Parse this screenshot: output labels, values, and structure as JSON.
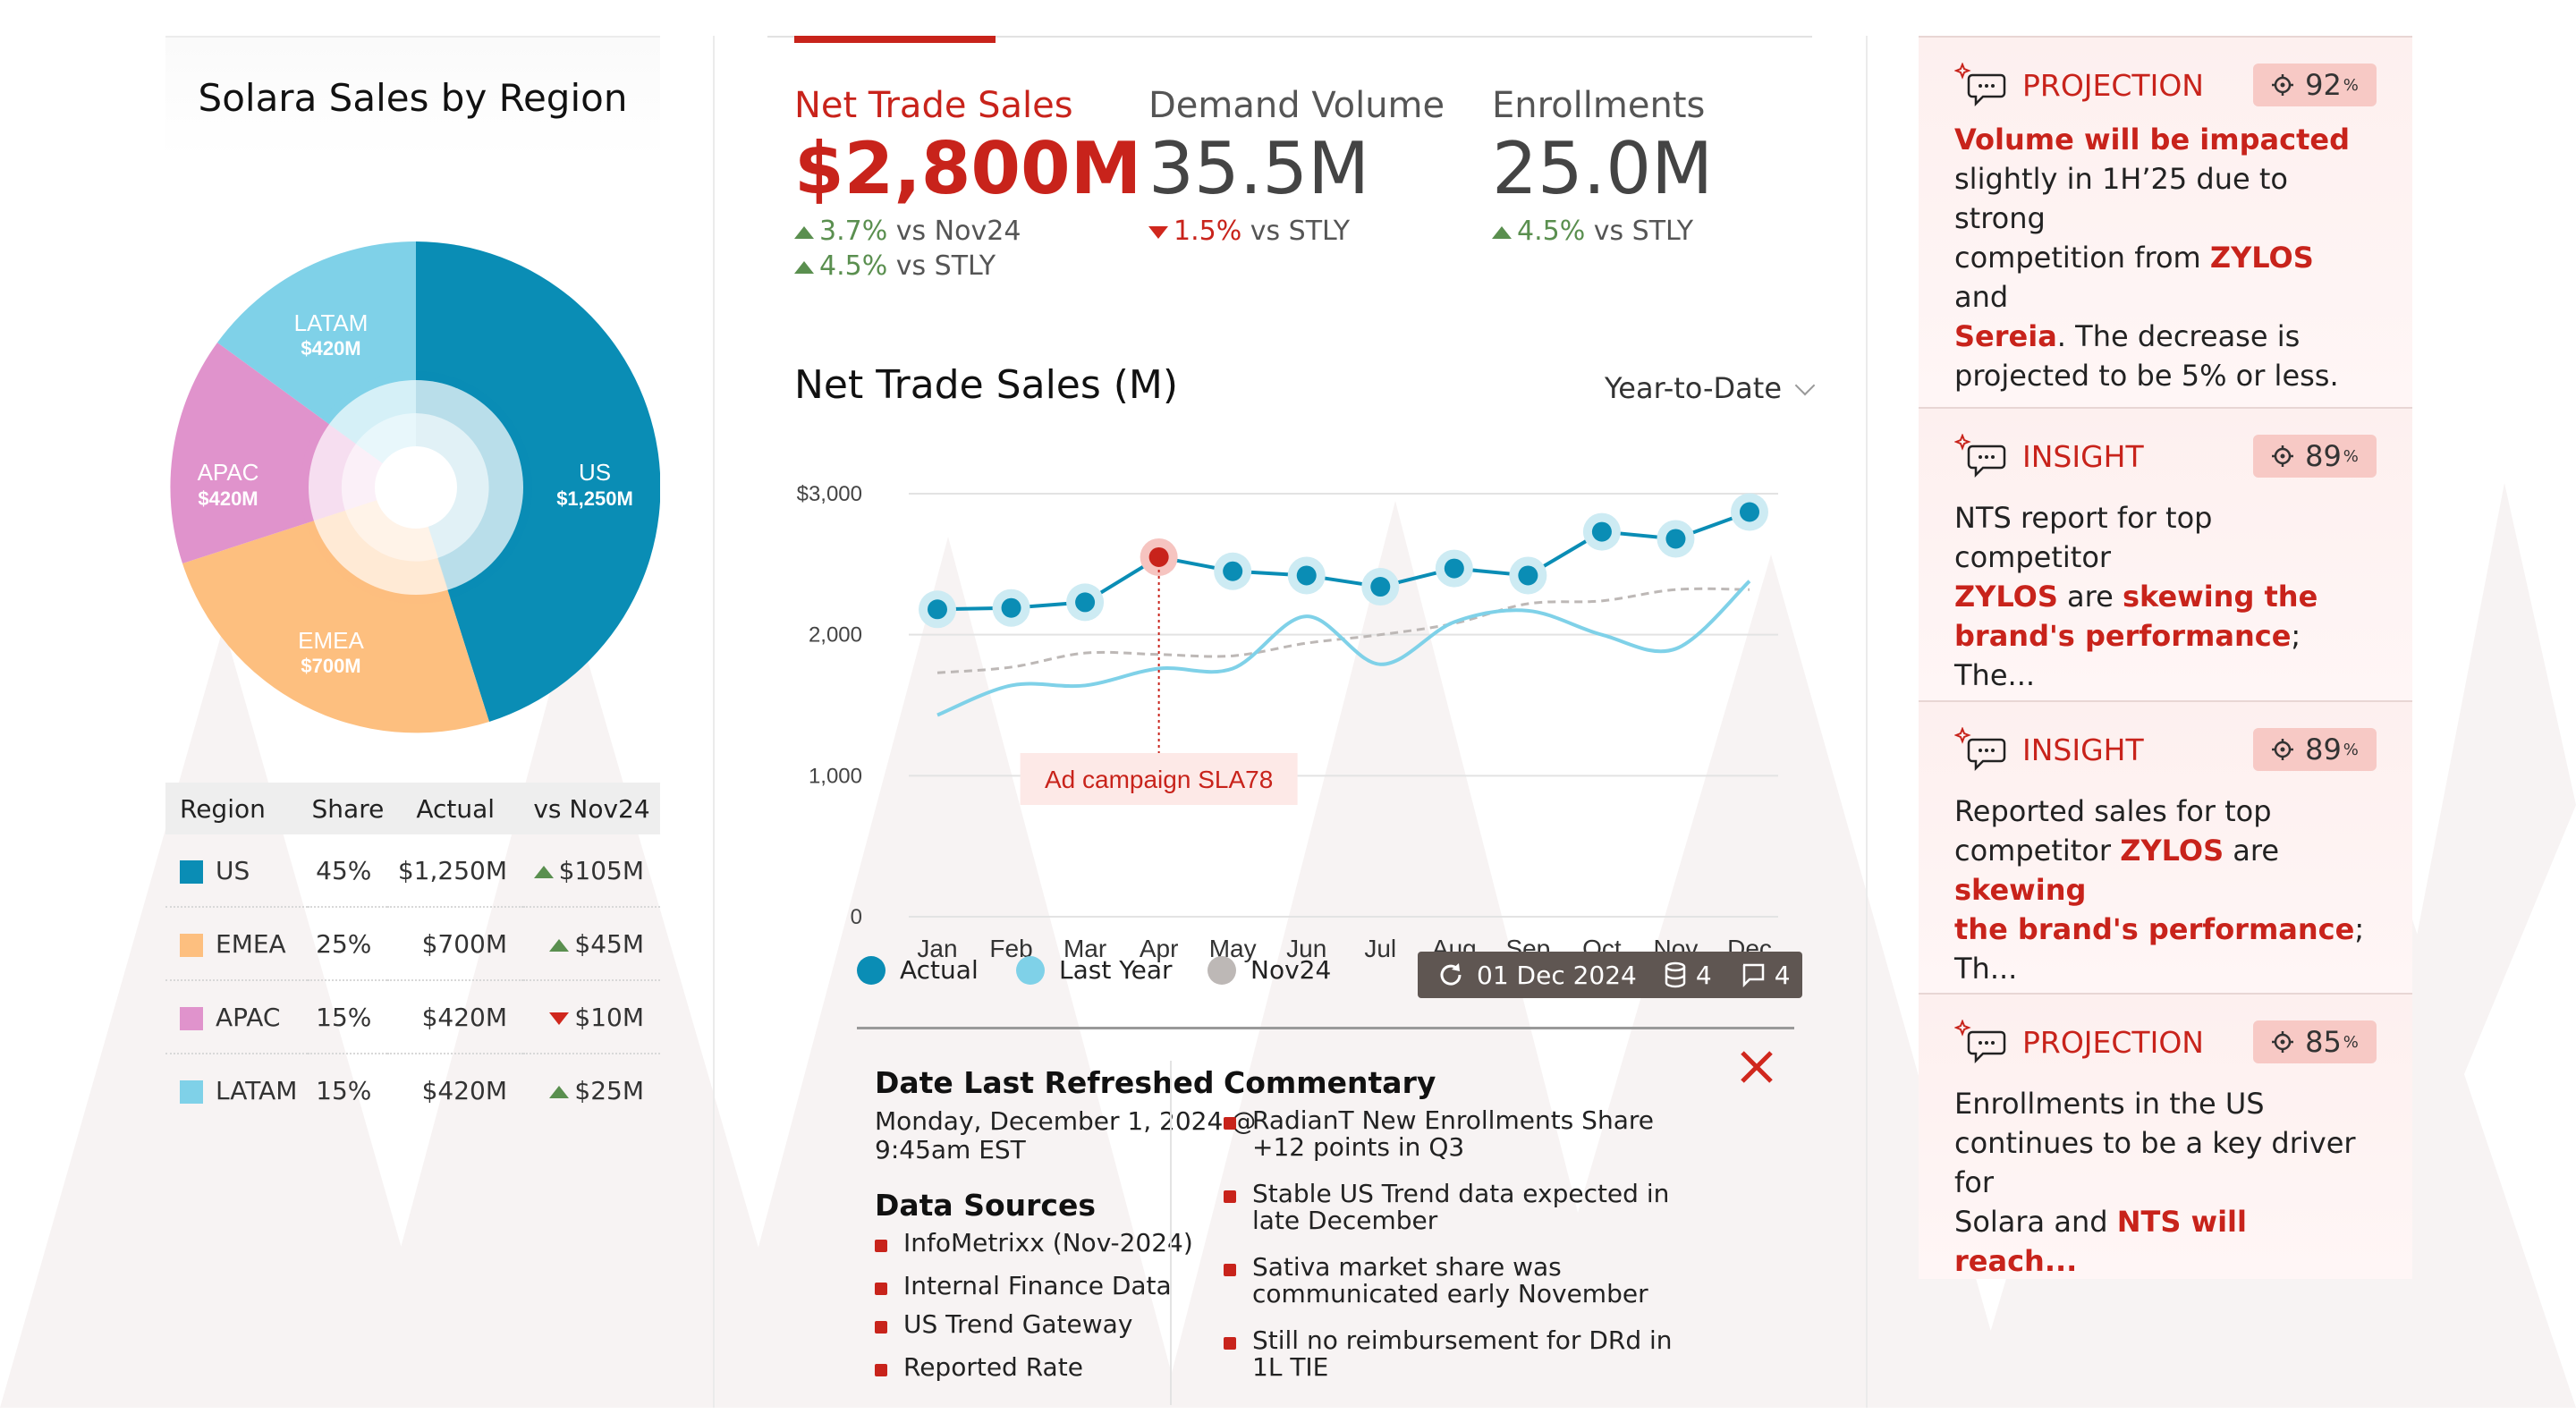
{
  "left": {
    "title": "Solara Sales by Region",
    "donut": [
      {
        "label": "US",
        "value": "$1,250M",
        "color": "#0a8db5"
      },
      {
        "label": "EMEA",
        "value": "$700M",
        "color": "#fdbf7f"
      },
      {
        "label": "APAC",
        "value": "$420M",
        "color": "#e093cc"
      },
      {
        "label": "LATAM",
        "value": "$420M",
        "color": "#7fd1e8"
      }
    ],
    "table": {
      "headers": [
        "Region",
        "Share",
        "Actual",
        "vs Nov24"
      ],
      "rows": [
        {
          "region": "US",
          "share": "45%",
          "actual": "$1,250M",
          "delta": "$105M",
          "dir": "up",
          "color": "#0a8db5"
        },
        {
          "region": "EMEA",
          "share": "25%",
          "actual": "$700M",
          "delta": "$45M",
          "dir": "up",
          "color": "#fdbf7f"
        },
        {
          "region": "APAC",
          "share": "15%",
          "actual": "$420M",
          "delta": "$10M",
          "dir": "down",
          "color": "#e093cc"
        },
        {
          "region": "LATAM",
          "share": "15%",
          "actual": "$420M",
          "delta": "$25M",
          "dir": "up",
          "color": "#7fd1e8"
        }
      ]
    }
  },
  "kpis": {
    "nts": {
      "label": "Net Trade Sales",
      "value": "$2,800M",
      "d1_val": "3.7%",
      "d1_txt": "vs Nov24",
      "d2_val": "4.5%",
      "d2_txt": "vs STLY"
    },
    "demand": {
      "label": "Demand Volume",
      "value": "35.5M",
      "d1_val": "1.5%",
      "d1_txt": "vs STLY"
    },
    "enroll": {
      "label": "Enrollments",
      "value": "25.0M",
      "d1_val": "4.5%",
      "d1_txt": "vs STLY"
    }
  },
  "chart_header": {
    "title": "Net Trade Sales (M)",
    "range": "Year-to-Date"
  },
  "chart_data": {
    "type": "line",
    "categories": [
      "Jan",
      "Feb",
      "Mar",
      "Apr",
      "May",
      "Jun",
      "Jul",
      "Aug",
      "Sep",
      "Oct",
      "Nov",
      "Dec"
    ],
    "yticks": [
      0,
      1000,
      2000,
      3000
    ],
    "ytick_labels": [
      "0",
      "1,000",
      "2,000",
      "$3,000"
    ],
    "ylim": [
      0,
      3000
    ],
    "series": [
      {
        "name": "Actual",
        "color": "#0a8db5",
        "values": [
          2180,
          2190,
          2230,
          2550,
          2450,
          2420,
          2340,
          2470,
          2420,
          2730,
          2680,
          2870
        ]
      },
      {
        "name": "Last Year",
        "color": "#7fd1e8",
        "values": [
          1430,
          1640,
          1640,
          1760,
          1760,
          2130,
          1790,
          2090,
          2170,
          2000,
          1900,
          2380
        ]
      },
      {
        "name": "Nov24",
        "color": "#bdb8b6",
        "values": [
          1730,
          1770,
          1870,
          1860,
          1850,
          1940,
          2000,
          2080,
          2220,
          2240,
          2320,
          2320
        ]
      }
    ],
    "annotation": {
      "text": "Ad campaign SLA78",
      "category": "Apr"
    }
  },
  "status": {
    "date": "01 Dec 2024",
    "db_count": "4",
    "comment_count": "4"
  },
  "details": {
    "refreshed_title": "Date Last Refreshed",
    "refreshed_line1": "Monday, December 1, 2024 @",
    "refreshed_line2": "9:45am EST",
    "sources_title": "Data Sources",
    "sources": [
      "InfoMetrixx (Nov-2024)",
      "Internal Finance Data",
      "US Trend Gateway",
      "Reported Rate"
    ],
    "commentary_title": "Commentary",
    "commentary": [
      [
        "RadianT New Enrollments Share",
        "+12 points in Q3"
      ],
      [
        "Stable US Trend data expected in",
        "late December"
      ],
      [
        "Sativa market share was",
        "communicated early November"
      ],
      [
        "Still no reimbursement for DRd in",
        "1L TIE"
      ]
    ]
  },
  "cards": [
    {
      "type": "PROJECTION",
      "score": "92",
      "unit": "%"
    },
    {
      "type": "INSIGHT",
      "score": "89",
      "unit": "%"
    },
    {
      "type": "INSIGHT",
      "score": "89",
      "unit": "%"
    },
    {
      "type": "PROJECTION",
      "score": "85",
      "unit": "%"
    }
  ],
  "card_text": {
    "c1": {
      "a": "Volume will be impacted",
      "b": "slightly in 1H’25 due to strong",
      "c": "competition from ",
      "d": "ZYLOS",
      "e": " and",
      "f": "Sereia",
      "g": ". The decrease is",
      "h": "projected to be 5% or less."
    },
    "c2": {
      "a": "NTS report for top competitor",
      "b": "ZYLOS",
      "c": " are ",
      "d": "skewing the",
      "e": "brand's performance",
      "f": "; The..."
    },
    "c3": {
      "a": "Reported sales for top",
      "b": "competitor ",
      "c": "ZYLOS",
      "d": " are ",
      "e": "skewing",
      "f": "the brand's performance",
      "g": "; Th..."
    },
    "c4": {
      "a": "Enrollments in the US",
      "b": "continues to be a key driver for",
      "c": "Solara and ",
      "d": "NTS will reach..."
    }
  }
}
